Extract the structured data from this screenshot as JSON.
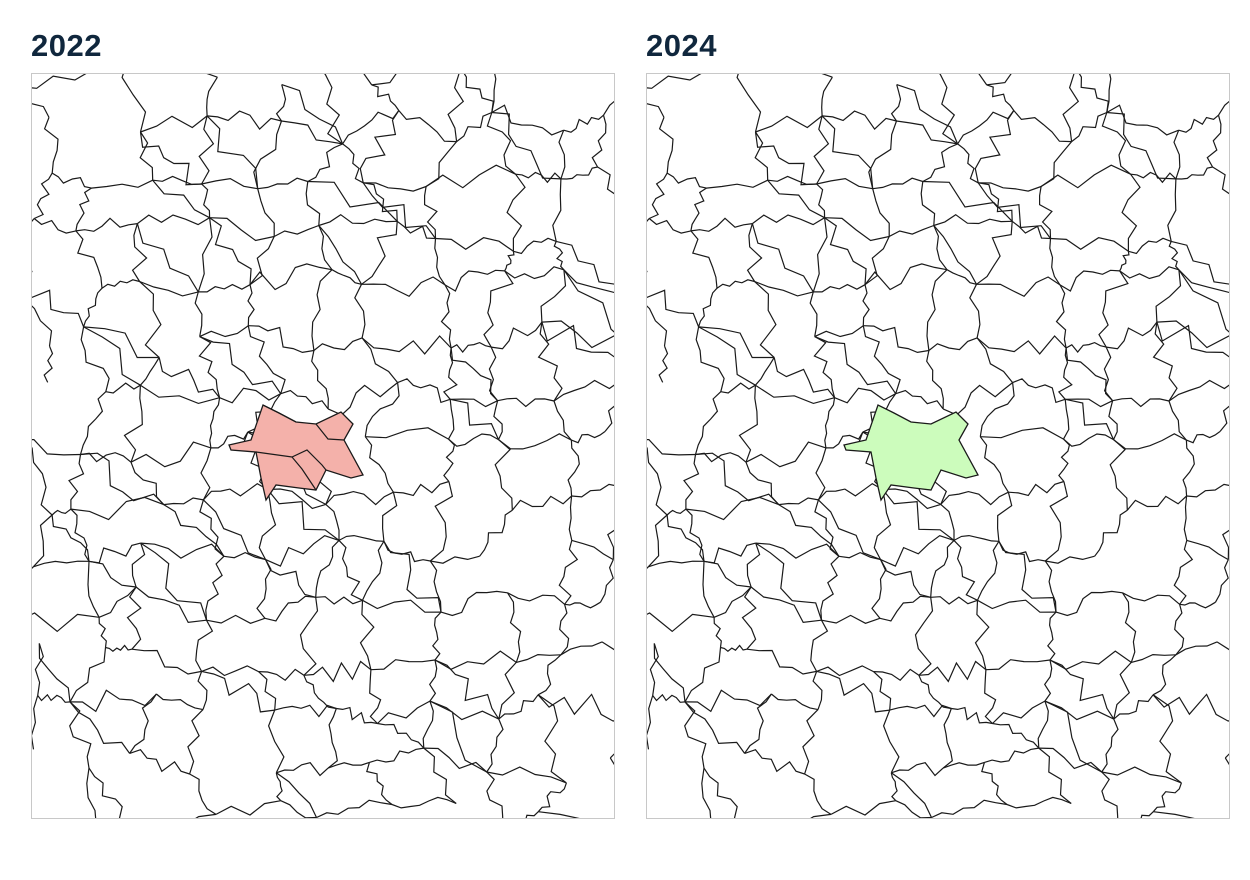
{
  "panels": [
    {
      "title": "2022",
      "highlight_color": "#f4b1aa"
    },
    {
      "title": "2024",
      "highlight_color": "#ccfcbc"
    }
  ],
  "boundary_color": "#1a1a1a",
  "frame_color": "#c8c8c8",
  "title_color": "#10273d"
}
